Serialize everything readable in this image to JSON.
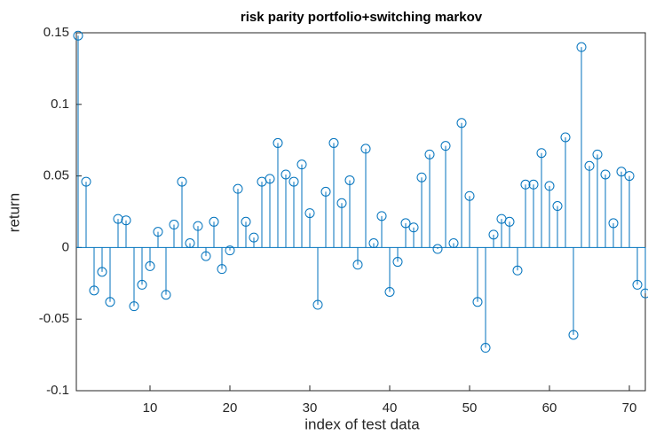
{
  "chart_data": {
    "type": "stem",
    "title": "risk parity portfolio+switching markov",
    "x_label": "index of test data",
    "y_label": "return",
    "x": [
      1,
      2,
      3,
      4,
      5,
      6,
      7,
      8,
      9,
      10,
      11,
      12,
      13,
      14,
      15,
      16,
      17,
      18,
      19,
      20,
      21,
      22,
      23,
      24,
      25,
      26,
      27,
      28,
      29,
      30,
      31,
      32,
      33,
      34,
      35,
      36,
      37,
      38,
      39,
      40,
      41,
      42,
      43,
      44,
      45,
      46,
      47,
      48,
      49,
      50,
      51,
      52,
      53,
      54,
      55,
      56,
      57,
      58,
      59,
      60,
      61,
      62,
      63,
      64,
      65,
      66,
      67,
      68,
      69,
      70,
      71,
      72
    ],
    "values": [
      0.148,
      0.046,
      -0.03,
      -0.017,
      -0.038,
      0.02,
      0.019,
      -0.041,
      -0.026,
      -0.013,
      0.011,
      -0.033,
      0.016,
      0.046,
      0.003,
      0.015,
      -0.006,
      0.018,
      -0.015,
      -0.002,
      0.041,
      0.018,
      0.007,
      0.046,
      0.048,
      0.073,
      0.051,
      0.046,
      0.058,
      0.024,
      -0.04,
      0.039,
      0.073,
      0.031,
      0.047,
      -0.012,
      0.069,
      0.003,
      0.022,
      -0.031,
      -0.01,
      0.017,
      0.014,
      0.049,
      0.065,
      -0.001,
      0.071,
      0.003,
      0.087,
      0.036,
      -0.038,
      -0.07,
      0.009,
      0.02,
      0.018,
      -0.016,
      0.044,
      0.044,
      0.066,
      0.043,
      0.029,
      0.077,
      -0.061,
      0.14,
      0.057,
      0.065,
      0.051,
      0.017,
      0.053,
      0.05,
      -0.026,
      -0.032
    ],
    "color": "#0072bd",
    "xlim": [
      1,
      72
    ],
    "ylim": [
      -0.1,
      0.15
    ],
    "xticks": [
      10,
      20,
      30,
      40,
      50,
      60,
      70
    ],
    "yticks": [
      -0.1,
      -0.05,
      0,
      0.05,
      0.1,
      0.15
    ]
  }
}
